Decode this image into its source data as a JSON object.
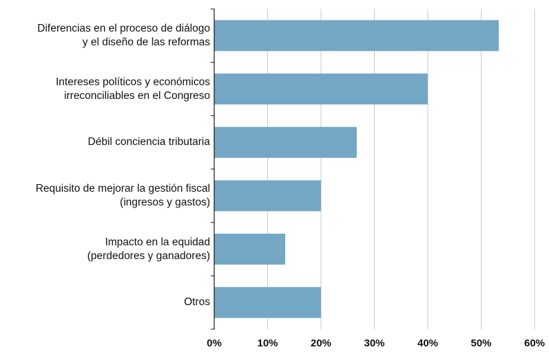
{
  "chart_data": {
    "type": "bar",
    "orientation": "horizontal",
    "categories": [
      "Diferencias en el proceso de diálogo\ny el diseño de las reformas",
      "Intereses políticos y económicos\nirreconciliables en el Congreso",
      "Débil conciencia tributaria",
      "Requisito de mejorar la gestión fiscal\n(ingresos y gastos)",
      "Impacto en la equidad\n(perdedores y ganadores)",
      "Otros"
    ],
    "values": [
      53.3,
      40,
      26.7,
      20,
      13.3,
      20
    ],
    "color": "#74a7c4",
    "xlim": [
      0,
      60
    ],
    "xticks": [
      {
        "value": 0,
        "label": "0%"
      },
      {
        "value": 10,
        "label": "10%"
      },
      {
        "value": 20,
        "label": "20%"
      },
      {
        "value": 30,
        "label": "30%"
      },
      {
        "value": 40,
        "label": "40%"
      },
      {
        "value": 50,
        "label": "50%"
      },
      {
        "value": 60,
        "label": "60%"
      }
    ],
    "grid": true
  }
}
